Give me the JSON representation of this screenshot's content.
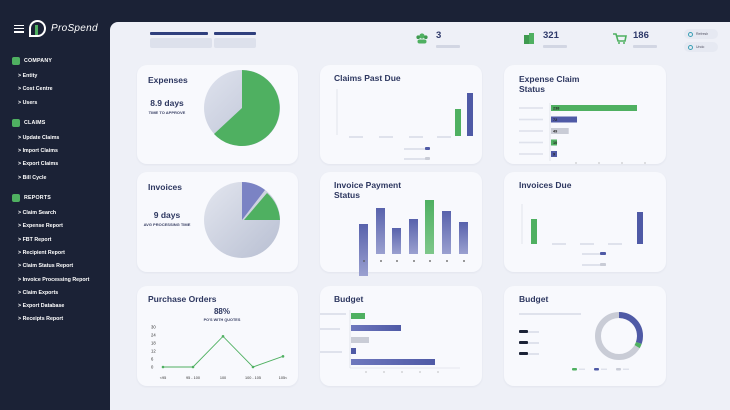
{
  "brand": {
    "name": "ProSpend"
  },
  "nav": {
    "sections": [
      {
        "label": "COMPANY",
        "icon": "company-icon",
        "items": [
          "> Entity",
          "> Cost Centre",
          "> Users"
        ]
      },
      {
        "label": "CLAIMS",
        "icon": "claims-icon",
        "items": [
          "> Update Claims",
          "> Import Claims",
          "> Export Claims",
          "> Bill Cycle"
        ]
      },
      {
        "label": "REPORTS",
        "icon": "reports-icon",
        "items": [
          "> Claim Search",
          "> Expense Report",
          "> FBT Report",
          "> Recipient Report",
          "> Claim Status Report",
          "> Invoice Processing Report",
          "> Claim Exports",
          "> Export Database",
          "> Receipts Report"
        ]
      }
    ]
  },
  "topbar": {
    "stats": [
      {
        "value": "3",
        "icon": "users-icon"
      },
      {
        "value": "321",
        "icon": "building-icon"
      },
      {
        "value": "186",
        "icon": "cart-icon"
      }
    ],
    "refresh_buttons": [
      "Refresh",
      "Undo"
    ]
  },
  "colors": {
    "green": "#4fb061",
    "navy": "#4f5aa6",
    "grey": "#c9ccd6"
  },
  "cards": {
    "expenses": {
      "title": "Expenses",
      "value": "8.9 days",
      "caption": "TIME TO APPROVE",
      "pie_share": 0.62
    },
    "claims_past_due": {
      "title": "Claims Past Due"
    },
    "expense_claim_status": {
      "title": "Expense Claim Status",
      "bars": [
        {
          "label": "238",
          "value": 238,
          "color": "green"
        },
        {
          "label": "72",
          "value": 72,
          "color": "navy"
        },
        {
          "label": "49",
          "value": 49,
          "color": "grey"
        },
        {
          "label": "10",
          "value": 10,
          "color": "green"
        },
        {
          "label": "9",
          "value": 9,
          "color": "navy"
        }
      ]
    },
    "invoices": {
      "title": "Invoices",
      "value": "9 days",
      "caption": "AVG PROCESSING TIME"
    },
    "invoice_payment_status": {
      "title": "Invoice Payment Status"
    },
    "invoices_due": {
      "title": "Invoices Due"
    },
    "purchase_orders": {
      "title": "Purchase Orders",
      "value": "88%",
      "caption": "PO'S WITH QUOTES",
      "y_ticks": [
        "30",
        "24",
        "18",
        "12",
        "6",
        "0"
      ],
      "x_ticks": [
        "<95",
        "95 - 100",
        "100",
        "100 - 105",
        "105<"
      ]
    },
    "budget_bars": {
      "title": "Budget"
    },
    "budget_donut": {
      "title": "Budget"
    }
  },
  "chart_data": [
    {
      "type": "line",
      "title": "Purchase Orders",
      "categories": [
        "<95",
        "95 - 100",
        "100",
        "100 - 105",
        "105<"
      ],
      "values": [
        0,
        0,
        23,
        0,
        8
      ],
      "ylim": [
        0,
        30
      ],
      "color": "#4fb061"
    },
    {
      "type": "bar",
      "title": "Expense Claim Status",
      "orientation": "horizontal",
      "categories": [
        "238",
        "72",
        "49",
        "10",
        "9"
      ],
      "values": [
        238,
        72,
        49,
        10,
        9
      ]
    }
  ]
}
